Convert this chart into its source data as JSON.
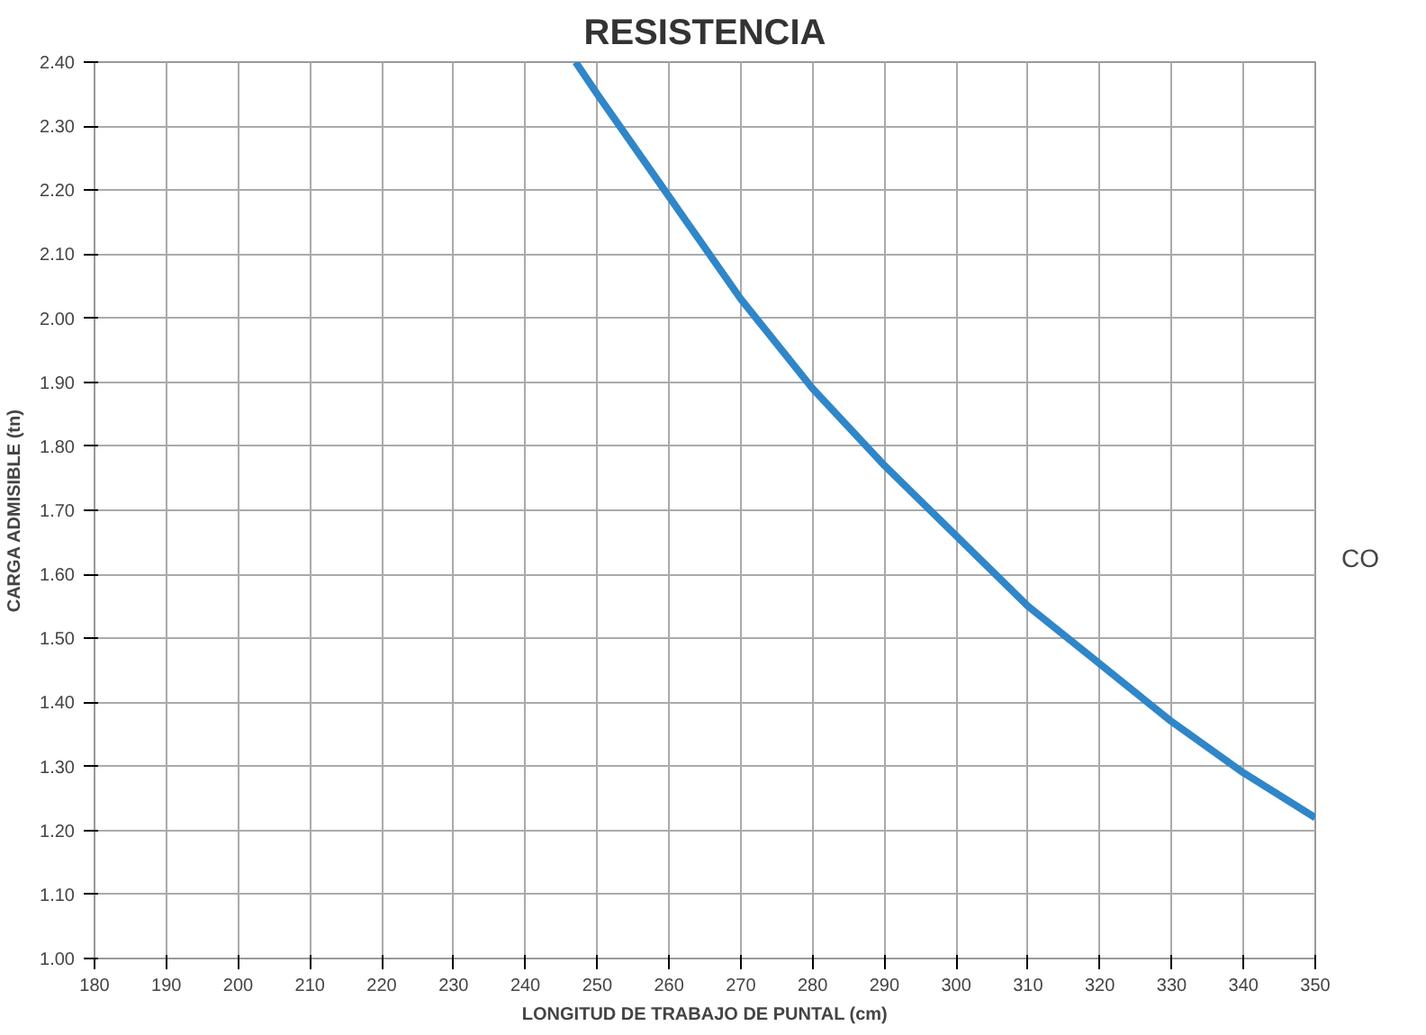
{
  "chart_data": {
    "type": "line",
    "title": "RESISTENCIA",
    "xlabel": "LONGITUD DE TRABAJO DE PUNTAL (cm)",
    "ylabel": "CARGA ADMISIBLE (tn)",
    "x": [
      247,
      250,
      260,
      270,
      280,
      290,
      300,
      310,
      320,
      330,
      340,
      350
    ],
    "series": [
      {
        "color": "#2f86c8",
        "values": [
          2.4,
          2.35,
          2.19,
          2.03,
          1.89,
          1.77,
          1.66,
          1.55,
          1.46,
          1.37,
          1.29,
          1.22
        ]
      }
    ],
    "xlim": [
      180,
      350
    ],
    "xticks": [
      180,
      190,
      200,
      210,
      220,
      230,
      240,
      250,
      260,
      270,
      280,
      290,
      300,
      310,
      320,
      330,
      340,
      350
    ],
    "ylim": [
      1.0,
      2.4
    ],
    "yticks": [
      {
        "value": 1.0,
        "label": "1.00"
      },
      {
        "value": 1.1,
        "label": "1.10"
      },
      {
        "value": 1.2,
        "label": "1.20"
      },
      {
        "value": 1.3,
        "label": "1.30"
      },
      {
        "value": 1.4,
        "label": "1.40"
      },
      {
        "value": 1.5,
        "label": "1.50"
      },
      {
        "value": 1.6,
        "label": "1.60"
      },
      {
        "value": 1.7,
        "label": "1.70"
      },
      {
        "value": 1.8,
        "label": "1.80"
      },
      {
        "value": 1.9,
        "label": "1.90"
      },
      {
        "value": 2.0,
        "label": "2.00"
      },
      {
        "value": 2.1,
        "label": "2.10"
      },
      {
        "value": 2.2,
        "label": "2.20"
      },
      {
        "value": 2.3,
        "label": "2.30"
      },
      {
        "value": 2.4,
        "label": "2.40"
      }
    ],
    "grid": true,
    "marker": "none",
    "line_style": "solid",
    "annotations": [
      "CO"
    ]
  }
}
